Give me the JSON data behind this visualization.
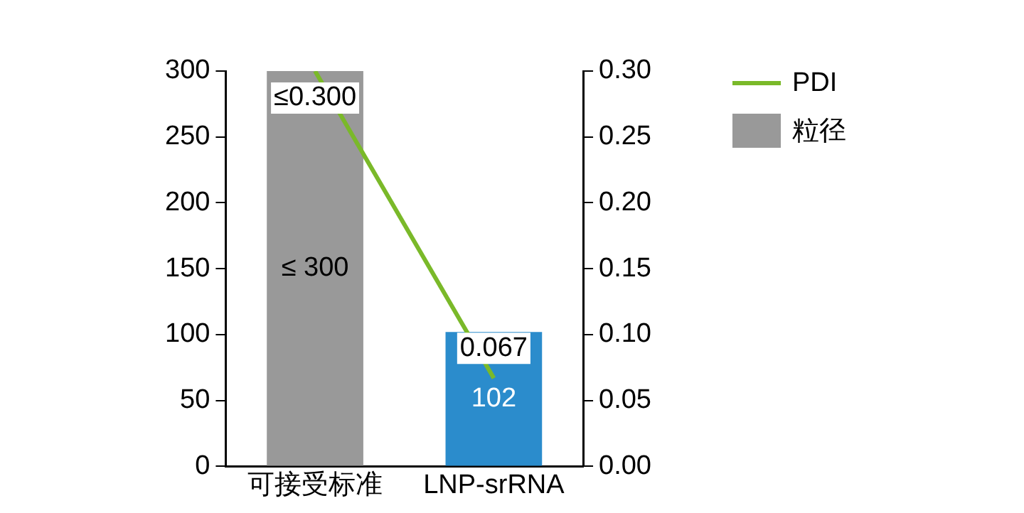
{
  "chart_data": {
    "type": "bar",
    "categories": [
      "可接受标准",
      "LNP-srRNA"
    ],
    "series": [
      {
        "name": "粒径",
        "color": "#999999",
        "colors": [
          "#999999",
          "#2b8ccc"
        ],
        "values": [
          300,
          102
        ],
        "value_labels": [
          "≤ 300",
          "102"
        ]
      },
      {
        "name": "PDI",
        "type": "line",
        "axis": "y2",
        "color": "#7ab929",
        "values": [
          0.3,
          0.067
        ],
        "value_labels": [
          "≤0.300",
          "0.067"
        ]
      }
    ],
    "ylim": [
      0,
      300
    ],
    "yticks": [
      0,
      50,
      100,
      150,
      200,
      250,
      300
    ],
    "y2lim": [
      0,
      0.3
    ],
    "y2ticks": [
      {
        "value": 0,
        "label": "0.00"
      },
      {
        "value": 0.05,
        "label": "0.05"
      },
      {
        "value": 0.1,
        "label": "0.10"
      },
      {
        "value": 0.15,
        "label": "0.15"
      },
      {
        "value": 0.2,
        "label": "0.20"
      },
      {
        "value": 0.25,
        "label": "0.25"
      },
      {
        "value": 0.3,
        "label": "0.30"
      }
    ],
    "grid": false,
    "legend": "top right",
    "marker": "none"
  }
}
